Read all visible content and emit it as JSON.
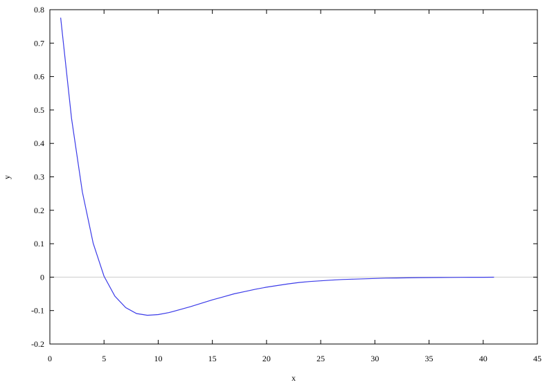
{
  "chart_data": {
    "type": "line",
    "title": "",
    "xlabel": "x",
    "ylabel": "y",
    "xlim": [
      0,
      45
    ],
    "ylim": [
      -0.2,
      0.8
    ],
    "xticks": [
      0,
      5,
      10,
      15,
      20,
      25,
      30,
      35,
      40,
      45
    ],
    "yticks": [
      -0.2,
      -0.1,
      0,
      0.1,
      0.2,
      0.3,
      0.4,
      0.5,
      0.6,
      0.7,
      0.8
    ],
    "grid": false,
    "reference_line": {
      "y": 0,
      "color": "#cccccc"
    },
    "series": [
      {
        "color": "#3a3ae8",
        "x": [
          1,
          2,
          3,
          4,
          5,
          6,
          7,
          8,
          9,
          10,
          11,
          12,
          13,
          14,
          15,
          16,
          17,
          18,
          19,
          20,
          21,
          22,
          23,
          24,
          25,
          26,
          27,
          28,
          29,
          30,
          31,
          32,
          33,
          34,
          35,
          36,
          37,
          38,
          39,
          40,
          41
        ],
        "y": [
          0.776,
          0.475,
          0.255,
          0.101,
          0.003,
          -0.057,
          -0.091,
          -0.109,
          -0.114,
          -0.112,
          -0.106,
          -0.097,
          -0.088,
          -0.078,
          -0.068,
          -0.059,
          -0.05,
          -0.043,
          -0.036,
          -0.03,
          -0.025,
          -0.02,
          -0.016,
          -0.013,
          -0.011,
          -0.009,
          -0.007,
          -0.006,
          -0.005,
          -0.004,
          -0.003,
          -0.0025,
          -0.002,
          -0.0015,
          -0.0012,
          -0.001,
          -0.0008,
          -0.0006,
          -0.0005,
          -0.0004,
          -0.0003
        ]
      }
    ]
  }
}
